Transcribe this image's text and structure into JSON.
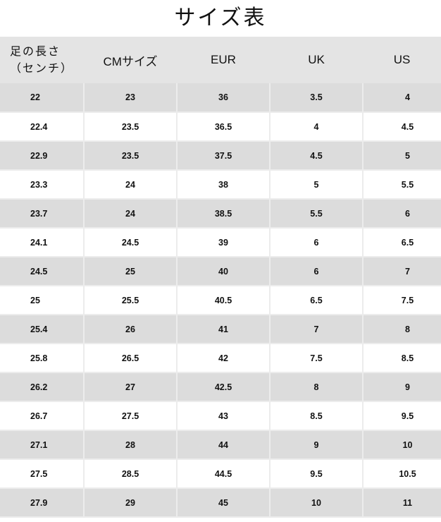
{
  "title": "サイズ表",
  "headers": {
    "foot_length_line1": "足の長さ",
    "foot_length_line2": "（センチ）",
    "cm": "CMサイズ",
    "eur": "EUR",
    "uk": "UK",
    "us": "US"
  },
  "rows": [
    [
      "22",
      "23",
      "36",
      "3.5",
      "4"
    ],
    [
      "22.4",
      "23.5",
      "36.5",
      "4",
      "4.5"
    ],
    [
      "22.9",
      "23.5",
      "37.5",
      "4.5",
      "5"
    ],
    [
      "23.3",
      "24",
      "38",
      "5",
      "5.5"
    ],
    [
      "23.7",
      "24",
      "38.5",
      "5.5",
      "6"
    ],
    [
      "24.1",
      "24.5",
      "39",
      "6",
      "6.5"
    ],
    [
      "24.5",
      "25",
      "40",
      "6",
      "7"
    ],
    [
      "25",
      "25.5",
      "40.5",
      "6.5",
      "7.5"
    ],
    [
      "25.4",
      "26",
      "41",
      "7",
      "8"
    ],
    [
      "25.8",
      "26.5",
      "42",
      "7.5",
      "8.5"
    ],
    [
      "26.2",
      "27",
      "42.5",
      "8",
      "9"
    ],
    [
      "26.7",
      "27.5",
      "43",
      "8.5",
      "9.5"
    ],
    [
      "27.1",
      "28",
      "44",
      "9",
      "10"
    ],
    [
      "27.5",
      "28.5",
      "44.5",
      "9.5",
      "10.5"
    ],
    [
      "27.9",
      "29",
      "45",
      "10",
      "11"
    ]
  ],
  "colors": {
    "header_bg": "#e4e4e4",
    "stripe_bg": "#dcdcdc",
    "border": "#ececec"
  }
}
